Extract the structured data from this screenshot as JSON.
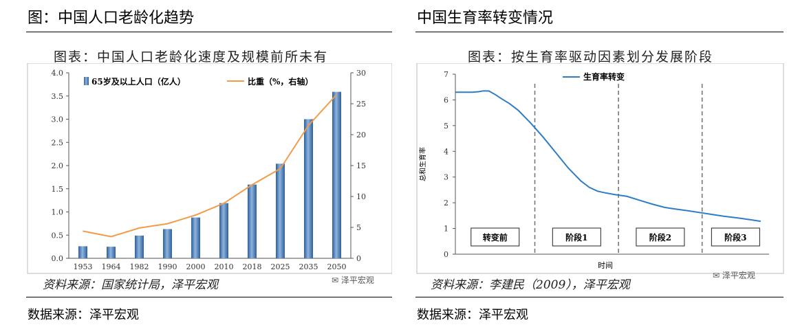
{
  "left": {
    "heading": "图：中国人口老龄化趋势",
    "source_outer": "数据来源：泽平宏观",
    "chart_data": {
      "type": "bar",
      "title": "图表：中国人口老龄化速度及规模前所未有",
      "categories": [
        "1953",
        "1964",
        "1982",
        "1990",
        "2000",
        "2010",
        "2018",
        "2025",
        "2035",
        "2050"
      ],
      "series": [
        {
          "name": "65岁及以上人口（亿人）",
          "type": "bar",
          "axis": "left",
          "color": "#3a6ea8",
          "values": [
            0.26,
            0.25,
            0.49,
            0.63,
            0.88,
            1.19,
            1.59,
            2.04,
            3.0,
            3.59
          ]
        },
        {
          "name": "比重（%，右轴）",
          "type": "line",
          "axis": "right",
          "color": "#f29b4a",
          "values": [
            4.4,
            3.5,
            4.9,
            5.6,
            7.0,
            8.9,
            11.9,
            14.5,
            21.5,
            26.5
          ]
        }
      ],
      "ylim": [
        0,
        4.0
      ],
      "yticks": [
        "0.0",
        "0.5",
        "1.0",
        "1.5",
        "2.0",
        "2.5",
        "3.0",
        "3.5",
        "4.0"
      ],
      "y2lim": [
        0,
        30
      ],
      "y2ticks": [
        "0",
        "5",
        "10",
        "15",
        "20",
        "25",
        "30"
      ],
      "legend": "top-left",
      "source": "资料来源：国家统计局，泽平宏观",
      "watermark": "泽平宏观"
    }
  },
  "right": {
    "heading": "中国生育率转变情况",
    "source_outer": "数据来源：泽平宏观",
    "chart_data": {
      "type": "line",
      "title": "图表：按生育率驱动因素划分发展阶段",
      "ylabel": "总和生育率",
      "xlabel": "时间",
      "ylim": [
        0,
        7
      ],
      "yticks": [
        "0",
        "1",
        "2",
        "3",
        "4",
        "5",
        "6",
        "7"
      ],
      "series": [
        {
          "name": "生育率转变",
          "color": "#2e7bc6",
          "points": [
            [
              0,
              6.3
            ],
            [
              0.1,
              6.3
            ],
            [
              0.2,
              6.3
            ],
            [
              0.28,
              6.32
            ],
            [
              0.33,
              6.35
            ],
            [
              0.4,
              6.35
            ],
            [
              0.48,
              6.2
            ],
            [
              0.55,
              6.05
            ],
            [
              0.65,
              5.85
            ],
            [
              0.75,
              5.6
            ],
            [
              0.9,
              5.1
            ],
            [
              1.05,
              4.55
            ],
            [
              1.2,
              3.95
            ],
            [
              1.35,
              3.35
            ],
            [
              1.5,
              2.85
            ],
            [
              1.6,
              2.6
            ],
            [
              1.7,
              2.45
            ],
            [
              1.8,
              2.38
            ],
            [
              1.9,
              2.32
            ],
            [
              2.05,
              2.25
            ],
            [
              2.2,
              2.1
            ],
            [
              2.35,
              1.95
            ],
            [
              2.5,
              1.82
            ],
            [
              2.6,
              1.77
            ],
            [
              2.8,
              1.68
            ],
            [
              3.0,
              1.58
            ],
            [
              3.2,
              1.48
            ],
            [
              3.4,
              1.4
            ],
            [
              3.55,
              1.33
            ],
            [
              3.65,
              1.28
            ]
          ]
        }
      ],
      "xlim": [
        0,
        3.75
      ],
      "dividers": [
        0.95,
        1.95,
        2.95
      ],
      "stages": [
        "转变前",
        "阶段1",
        "阶段2",
        "阶段3"
      ],
      "legend": "top-left",
      "source": "资料来源：李建民（2009），泽平宏观",
      "watermark": "泽平宏观"
    }
  }
}
